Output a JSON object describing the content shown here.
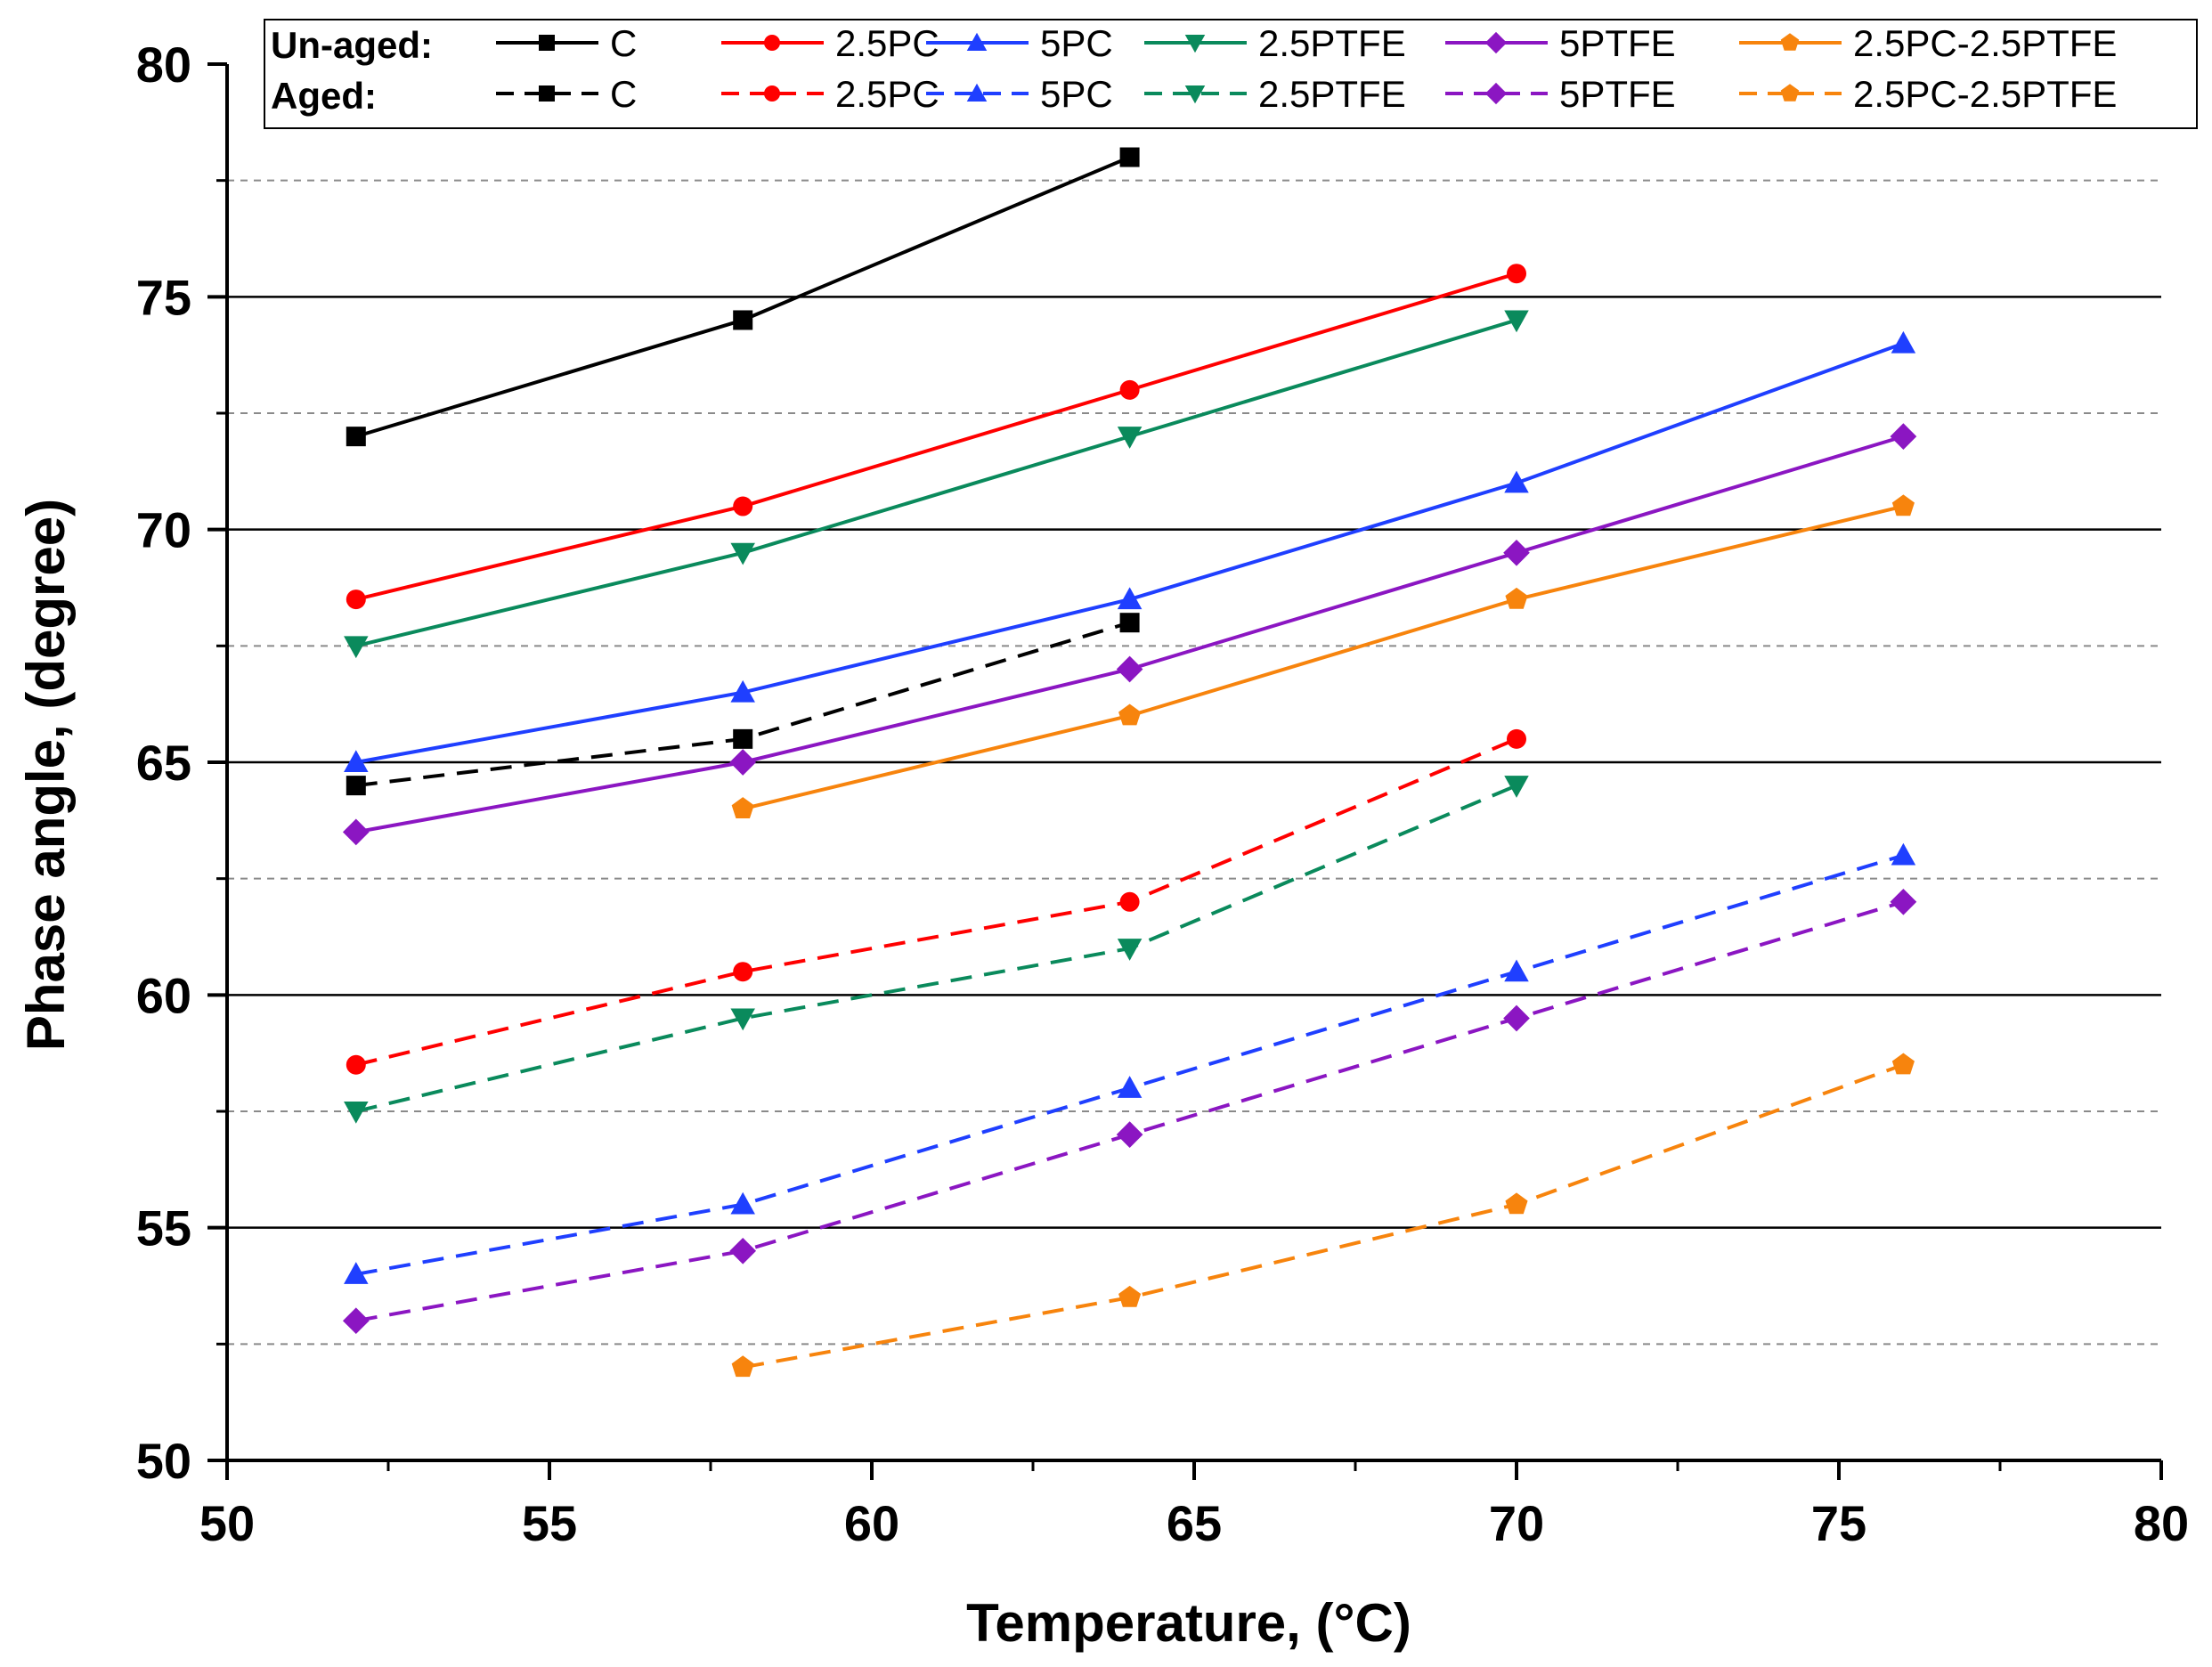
{
  "chart_data": {
    "type": "line",
    "title": "",
    "xlabel": "Temperature, (°C)",
    "ylabel": "Phase angle, (degree)",
    "xlim": [
      50,
      80
    ],
    "ylim": [
      50,
      80
    ],
    "x_ticks": [
      50,
      55,
      60,
      65,
      70,
      75,
      80
    ],
    "y_ticks": [
      50,
      55,
      60,
      65,
      70,
      75,
      80
    ],
    "x_tick_labels": [
      "50",
      "55",
      "60",
      "65",
      "70",
      "75",
      "80"
    ],
    "y_tick_labels": [
      "50",
      "55",
      "60",
      "65",
      "70",
      "75",
      "80"
    ],
    "grid_major_y": [
      55,
      60,
      65,
      70,
      75
    ],
    "grid_minor_y": [
      52.5,
      57.5,
      62.5,
      67.5,
      72.5,
      77.5
    ],
    "legend": {
      "placement": "top-right",
      "rows": [
        "Un-aged:",
        "Aged:"
      ],
      "series_names": [
        "C",
        "2.5PC",
        "5PC",
        "2.5PTFE",
        "5PTFE",
        "2.5PC-2.5PTFE"
      ]
    },
    "series": [
      {
        "name": "C",
        "group": "Un-aged",
        "style": "solid",
        "color": "#000000",
        "marker": "square",
        "x": [
          52,
          58,
          64
        ],
        "y": [
          72,
          74.5,
          78
        ]
      },
      {
        "name": "2.5PC",
        "group": "Un-aged",
        "style": "solid",
        "color": "#ff0000",
        "marker": "circle",
        "x": [
          52,
          58,
          64,
          70
        ],
        "y": [
          68.5,
          70.5,
          73,
          75.5
        ]
      },
      {
        "name": "5PC",
        "group": "Un-aged",
        "style": "solid",
        "color": "#1f3fff",
        "marker": "triangle-up",
        "x": [
          52,
          58,
          64,
          70,
          76
        ],
        "y": [
          65,
          66.5,
          68.5,
          71,
          74
        ]
      },
      {
        "name": "2.5PTFE",
        "group": "Un-aged",
        "style": "solid",
        "color": "#0a8a5c",
        "marker": "triangle-down",
        "x": [
          52,
          58,
          64,
          70
        ],
        "y": [
          67.5,
          69.5,
          72,
          74.5
        ]
      },
      {
        "name": "5PTFE",
        "group": "Un-aged",
        "style": "solid",
        "color": "#8b16c2",
        "marker": "diamond",
        "x": [
          52,
          58,
          64,
          70,
          76
        ],
        "y": [
          63.5,
          65,
          67,
          69.5,
          72
        ]
      },
      {
        "name": "2.5PC-2.5PTFE",
        "group": "Un-aged",
        "style": "solid",
        "color": "#f7840d",
        "marker": "pentagon",
        "x": [
          58,
          64,
          70,
          76
        ],
        "y": [
          64,
          66,
          68.5,
          70.5
        ]
      },
      {
        "name": "C",
        "group": "Aged",
        "style": "dashed",
        "color": "#000000",
        "marker": "square",
        "x": [
          52,
          58,
          64
        ],
        "y": [
          64.5,
          65.5,
          68
        ]
      },
      {
        "name": "2.5PC",
        "group": "Aged",
        "style": "dashed",
        "color": "#ff0000",
        "marker": "circle",
        "x": [
          52,
          58,
          64,
          70
        ],
        "y": [
          58.5,
          60.5,
          62,
          65.5
        ]
      },
      {
        "name": "5PC",
        "group": "Aged",
        "style": "dashed",
        "color": "#1f3fff",
        "marker": "triangle-up",
        "x": [
          52,
          58,
          64,
          70,
          76
        ],
        "y": [
          54,
          55.5,
          58,
          60.5,
          63
        ]
      },
      {
        "name": "2.5PTFE",
        "group": "Aged",
        "style": "dashed",
        "color": "#0a8a5c",
        "marker": "triangle-down",
        "x": [
          52,
          58,
          64,
          70
        ],
        "y": [
          57.5,
          59.5,
          61,
          64.5
        ]
      },
      {
        "name": "5PTFE",
        "group": "Aged",
        "style": "dashed",
        "color": "#8b16c2",
        "marker": "diamond",
        "x": [
          52,
          58,
          64,
          70,
          76
        ],
        "y": [
          53,
          54.5,
          57,
          59.5,
          62
        ]
      },
      {
        "name": "2.5PC-2.5PTFE",
        "group": "Aged",
        "style": "dashed",
        "color": "#f7840d",
        "marker": "pentagon",
        "x": [
          58,
          64,
          70,
          76
        ],
        "y": [
          52,
          53.5,
          55.5,
          58.5
        ]
      }
    ]
  }
}
